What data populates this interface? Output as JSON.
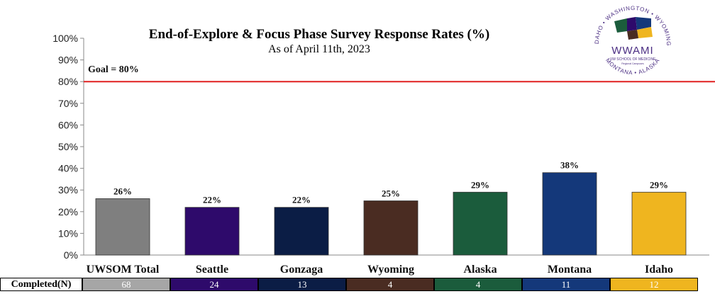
{
  "chart_data": {
    "type": "bar",
    "title": "End-of-Explore & Focus Phase Survey Response Rates (%)",
    "subtitle": "As of April 11th, 2023",
    "categories": [
      "UWSOM Total",
      "Seattle",
      "Gonzaga",
      "Wyoming",
      "Alaska",
      "Montana",
      "Idaho"
    ],
    "values": [
      26,
      22,
      22,
      25,
      29,
      38,
      29
    ],
    "value_labels": [
      "26%",
      "22%",
      "22%",
      "25%",
      "29%",
      "38%",
      "29%"
    ],
    "colors": [
      "#7f7f7f",
      "#2e0a6b",
      "#0b1d45",
      "#4a2c22",
      "#1b5c3c",
      "#14387a",
      "#efb51f"
    ],
    "ylim": [
      0,
      100
    ],
    "yticks": [
      "0%",
      "10%",
      "20%",
      "30%",
      "40%",
      "50%",
      "60%",
      "70%",
      "80%",
      "90%",
      "100%"
    ],
    "goal": {
      "value": 80,
      "label": "Goal = 80%",
      "color": "#e02020"
    },
    "grid": false
  },
  "completed": {
    "label": "Completed(N)",
    "values": [
      "68",
      "24",
      "13",
      "4",
      "4",
      "11",
      "12"
    ],
    "colors": [
      "#a6a6a6",
      "#2e0a6b",
      "#0b1d45",
      "#4a2c22",
      "#1b5c3c",
      "#14387a",
      "#efb51f"
    ]
  },
  "logo": {
    "ring_text_top": "IDAHO • WASHINGTON • WYOMING",
    "ring_text_bottom": "MONTANA • ALASKA",
    "wordmark": "WWAMI",
    "school": "UW SCHOOL OF MEDICINE",
    "subtext": "Regional Campuses"
  }
}
